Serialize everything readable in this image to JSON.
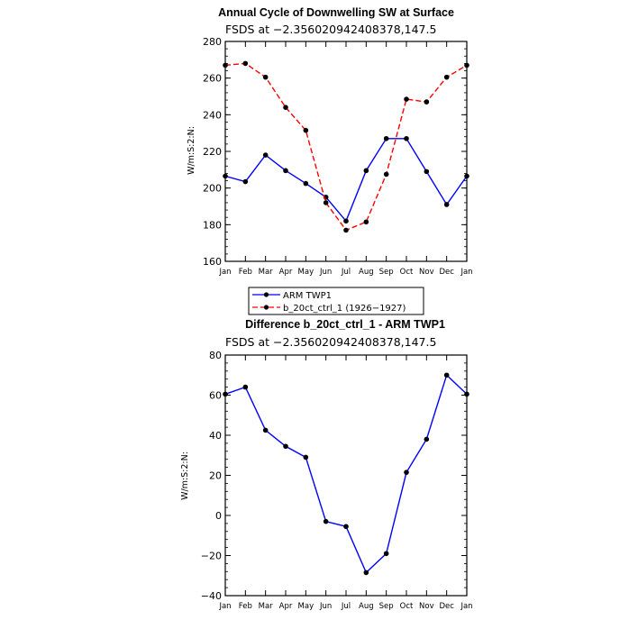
{
  "chart_data": [
    {
      "type": "line",
      "title": "Annual Cycle of Downwelling SW at Surface",
      "subtitle": "FSDS at −2.356020942408378,147.5",
      "xlabel": "",
      "ylabel": "W/m:S:2:N:",
      "categories": [
        "Jan",
        "Feb",
        "Mar",
        "Apr",
        "May",
        "Jun",
        "Jul",
        "Aug",
        "Sep",
        "Oct",
        "Nov",
        "Dec",
        "Jan"
      ],
      "ylim": [
        160,
        280
      ],
      "yticks": [
        160,
        180,
        200,
        220,
        240,
        260,
        280
      ],
      "series": [
        {
          "name": "ARM TWP1",
          "color": "#0000ff",
          "dash": "solid",
          "values": [
            206.5,
            203.5,
            218,
            209.5,
            202.5,
            195,
            182,
            209.5,
            227,
            227,
            209,
            191,
            206.5
          ]
        },
        {
          "name": "b_20ct_ctrl_1 (1926−1927)",
          "color": "#ff0000",
          "dash": "dashed",
          "values": [
            267,
            268,
            260.5,
            244,
            231.5,
            192,
            177,
            181.5,
            207.5,
            248.5,
            247,
            260.5,
            267
          ]
        }
      ],
      "legend": "bottom"
    },
    {
      "type": "line",
      "title": "Difference b_20ct_ctrl_1 - ARM TWP1",
      "subtitle": "FSDS at −2.356020942408378,147.5",
      "xlabel": "",
      "ylabel": "W/m:S:2:N:",
      "categories": [
        "Jan",
        "Feb",
        "Mar",
        "Apr",
        "May",
        "Jun",
        "Jul",
        "Aug",
        "Sep",
        "Oct",
        "Nov",
        "Dec",
        "Jan"
      ],
      "ylim": [
        -40,
        80
      ],
      "yticks": [
        -40,
        -20,
        0,
        20,
        40,
        60,
        80
      ],
      "series": [
        {
          "name": "",
          "color": "#0000ff",
          "dash": "solid",
          "values": [
            60.5,
            64,
            42.5,
            34.5,
            29,
            -3,
            -5.5,
            -28.5,
            -19,
            21.5,
            38,
            70,
            60.5
          ]
        }
      ]
    }
  ]
}
